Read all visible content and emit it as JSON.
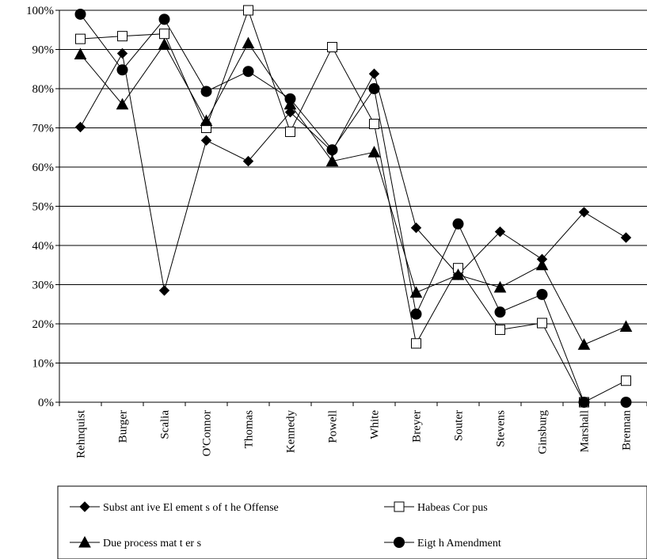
{
  "chart_data": {
    "type": "line",
    "categories": [
      "Rehnquist",
      "Burger",
      "Scalia",
      "O'Connor",
      "Thomas",
      "Kennedy",
      "Powell",
      "White",
      "Breyer",
      "Souter",
      "Stevens",
      "Ginsburg",
      "Marshall",
      "Brennan"
    ],
    "ylim": [
      0,
      100
    ],
    "yticks": [
      "0%",
      "10%",
      "20%",
      "30%",
      "40%",
      "50%",
      "60%",
      "70%",
      "80%",
      "90%",
      "100%"
    ],
    "grid": "horizontal",
    "legend_position": "bottom",
    "series": [
      {
        "name": "Subst ant ive El ement s of t he Offense",
        "marker": "diamond",
        "fill": "#000000",
        "values": [
          70.2,
          89,
          28.5,
          66.8,
          61.5,
          74,
          64,
          83.8,
          44.5,
          32.5,
          43.5,
          36.5,
          48.5,
          42
        ]
      },
      {
        "name": "Habeas Cor pus",
        "marker": "square",
        "fill": "#ffffff",
        "values": [
          92.7,
          93.4,
          94,
          70,
          100,
          69,
          90.6,
          71,
          15,
          34.2,
          18.5,
          20.2,
          0,
          5.5
        ]
      },
      {
        "name": "Due process mat t er s",
        "marker": "triangle",
        "fill": "#000000",
        "values": [
          88.8,
          76,
          91.3,
          71.8,
          91.6,
          76,
          61.5,
          63.8,
          28,
          32.5,
          29.3,
          35,
          14.7,
          19.3
        ]
      },
      {
        "name": "Eigt h Amendment",
        "marker": "circle",
        "fill": "#000000",
        "values": [
          99,
          84.8,
          97.7,
          79.3,
          84.4,
          77.4,
          64.4,
          80,
          22.5,
          45.5,
          23,
          27.5,
          0,
          0
        ]
      }
    ]
  }
}
